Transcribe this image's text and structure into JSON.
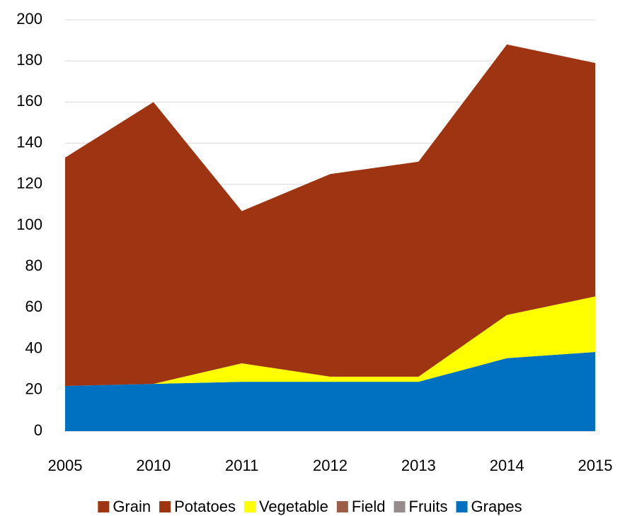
{
  "chart_data": {
    "type": "stacked_area",
    "categories": [
      "2005",
      "2010",
      "2011",
      "2012",
      "2013",
      "2014",
      "2015"
    ],
    "series": [
      {
        "name": "Grapes",
        "color": "#0070c0",
        "values": [
          22,
          23,
          24,
          24,
          24,
          35.5,
          38.5
        ]
      },
      {
        "name": "Fruits",
        "color": "#968c8c",
        "values": [
          0,
          0,
          0,
          0,
          0,
          0,
          0
        ]
      },
      {
        "name": "Field",
        "color": "#9c5e45",
        "values": [
          0,
          0,
          0,
          0,
          0,
          0,
          0
        ]
      },
      {
        "name": "Vegetable",
        "color": "#ffff00",
        "values": [
          0,
          0,
          9,
          2.5,
          2.5,
          21,
          27
        ]
      },
      {
        "name": "Potatoes",
        "color": "#9e3412",
        "values": [
          111,
          137,
          74,
          98.5,
          104.5,
          131.5,
          113.5
        ]
      },
      {
        "name": "Grain",
        "color": "#9e3412",
        "values": [
          0,
          0,
          0,
          0,
          0,
          0,
          0
        ]
      }
    ],
    "legend_order": [
      5,
      4,
      3,
      2,
      1,
      0
    ],
    "ylim": [
      0,
      200
    ],
    "yticks": [
      0,
      20,
      40,
      60,
      80,
      100,
      120,
      140,
      160,
      180,
      200
    ],
    "grid": true
  }
}
